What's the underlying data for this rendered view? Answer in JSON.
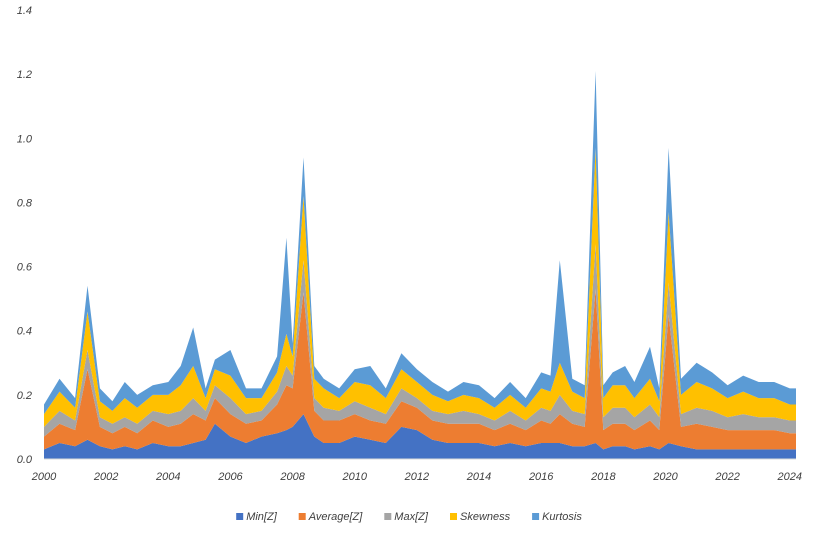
{
  "chart_data": {
    "type": "area",
    "stacked": true,
    "title": "",
    "xlabel": "",
    "ylabel": "",
    "xlim": [
      2000,
      2024.2
    ],
    "ylim": [
      0,
      1.4
    ],
    "x_ticks": [
      "2000",
      "2002",
      "2004",
      "2006",
      "2008",
      "2010",
      "2012",
      "2014",
      "2016",
      "2018",
      "2020",
      "2022",
      "2024"
    ],
    "y_ticks": [
      "0.0",
      "0.2",
      "0.4",
      "0.6",
      "0.8",
      "1.0",
      "1.2",
      "1.4"
    ],
    "grid": false,
    "legend_position": "bottom",
    "x": [
      2000.0,
      2000.5,
      2001.0,
      2001.4,
      2001.8,
      2002.2,
      2002.6,
      2003.0,
      2003.5,
      2004.0,
      2004.4,
      2004.8,
      2005.2,
      2005.5,
      2006.0,
      2006.5,
      2007.0,
      2007.5,
      2007.8,
      2008.0,
      2008.35,
      2008.7,
      2009.0,
      2009.5,
      2010.0,
      2010.5,
      2011.0,
      2011.5,
      2012.0,
      2012.5,
      2013.0,
      2013.5,
      2014.0,
      2014.5,
      2015.0,
      2015.5,
      2016.0,
      2016.3,
      2016.6,
      2017.0,
      2017.4,
      2017.75,
      2018.0,
      2018.3,
      2018.7,
      2019.0,
      2019.5,
      2019.8,
      2020.1,
      2020.5,
      2021.0,
      2021.5,
      2022.0,
      2022.5,
      2023.0,
      2023.5,
      2024.0,
      2024.2
    ],
    "series": [
      {
        "name": "Min[Z]",
        "color": "#4472C4",
        "values": [
          0.03,
          0.05,
          0.04,
          0.06,
          0.04,
          0.03,
          0.04,
          0.03,
          0.05,
          0.04,
          0.04,
          0.05,
          0.06,
          0.11,
          0.07,
          0.05,
          0.07,
          0.08,
          0.09,
          0.1,
          0.14,
          0.07,
          0.05,
          0.05,
          0.07,
          0.06,
          0.05,
          0.1,
          0.09,
          0.06,
          0.05,
          0.05,
          0.05,
          0.04,
          0.05,
          0.04,
          0.05,
          0.05,
          0.05,
          0.04,
          0.04,
          0.05,
          0.03,
          0.04,
          0.04,
          0.03,
          0.04,
          0.03,
          0.05,
          0.04,
          0.03,
          0.03,
          0.03,
          0.03,
          0.03,
          0.03,
          0.03,
          0.03
        ]
      },
      {
        "name": "Average[Z]",
        "color": "#ED7D31",
        "values": [
          0.04,
          0.06,
          0.05,
          0.22,
          0.06,
          0.05,
          0.06,
          0.05,
          0.07,
          0.06,
          0.07,
          0.09,
          0.06,
          0.08,
          0.07,
          0.06,
          0.05,
          0.09,
          0.14,
          0.12,
          0.38,
          0.08,
          0.07,
          0.07,
          0.07,
          0.06,
          0.06,
          0.08,
          0.07,
          0.06,
          0.06,
          0.06,
          0.06,
          0.05,
          0.06,
          0.05,
          0.07,
          0.06,
          0.09,
          0.07,
          0.06,
          0.48,
          0.06,
          0.07,
          0.07,
          0.06,
          0.08,
          0.06,
          0.4,
          0.06,
          0.08,
          0.07,
          0.06,
          0.06,
          0.06,
          0.06,
          0.05,
          0.05
        ]
      },
      {
        "name": "Max[Z]",
        "color": "#A5A5A5",
        "values": [
          0.03,
          0.04,
          0.03,
          0.06,
          0.03,
          0.03,
          0.03,
          0.03,
          0.03,
          0.04,
          0.04,
          0.05,
          0.03,
          0.04,
          0.05,
          0.03,
          0.03,
          0.04,
          0.06,
          0.04,
          0.1,
          0.04,
          0.04,
          0.03,
          0.04,
          0.04,
          0.03,
          0.04,
          0.03,
          0.03,
          0.03,
          0.04,
          0.03,
          0.03,
          0.04,
          0.03,
          0.04,
          0.04,
          0.06,
          0.04,
          0.04,
          0.14,
          0.04,
          0.05,
          0.05,
          0.04,
          0.05,
          0.04,
          0.1,
          0.04,
          0.05,
          0.05,
          0.04,
          0.05,
          0.04,
          0.04,
          0.04,
          0.04
        ]
      },
      {
        "name": "Skewness",
        "color": "#FFC000",
        "values": [
          0.04,
          0.06,
          0.04,
          0.12,
          0.05,
          0.04,
          0.06,
          0.05,
          0.05,
          0.06,
          0.08,
          0.1,
          0.04,
          0.05,
          0.07,
          0.05,
          0.04,
          0.06,
          0.1,
          0.06,
          0.2,
          0.06,
          0.06,
          0.04,
          0.06,
          0.07,
          0.05,
          0.06,
          0.05,
          0.05,
          0.04,
          0.05,
          0.05,
          0.04,
          0.05,
          0.04,
          0.06,
          0.06,
          0.1,
          0.06,
          0.05,
          0.3,
          0.06,
          0.07,
          0.07,
          0.06,
          0.08,
          0.05,
          0.22,
          0.06,
          0.08,
          0.07,
          0.06,
          0.07,
          0.06,
          0.06,
          0.05,
          0.05
        ]
      },
      {
        "name": "Kurtosis",
        "color": "#5B9BD5",
        "values": [
          0.03,
          0.04,
          0.03,
          0.08,
          0.04,
          0.03,
          0.05,
          0.04,
          0.03,
          0.04,
          0.06,
          0.12,
          0.03,
          0.03,
          0.08,
          0.03,
          0.03,
          0.05,
          0.3,
          0.04,
          0.12,
          0.04,
          0.03,
          0.03,
          0.04,
          0.06,
          0.03,
          0.05,
          0.04,
          0.04,
          0.03,
          0.04,
          0.04,
          0.03,
          0.04,
          0.03,
          0.05,
          0.05,
          0.32,
          0.04,
          0.04,
          0.24,
          0.04,
          0.04,
          0.06,
          0.05,
          0.1,
          0.04,
          0.2,
          0.05,
          0.06,
          0.05,
          0.04,
          0.05,
          0.05,
          0.05,
          0.05,
          0.05
        ]
      }
    ]
  }
}
